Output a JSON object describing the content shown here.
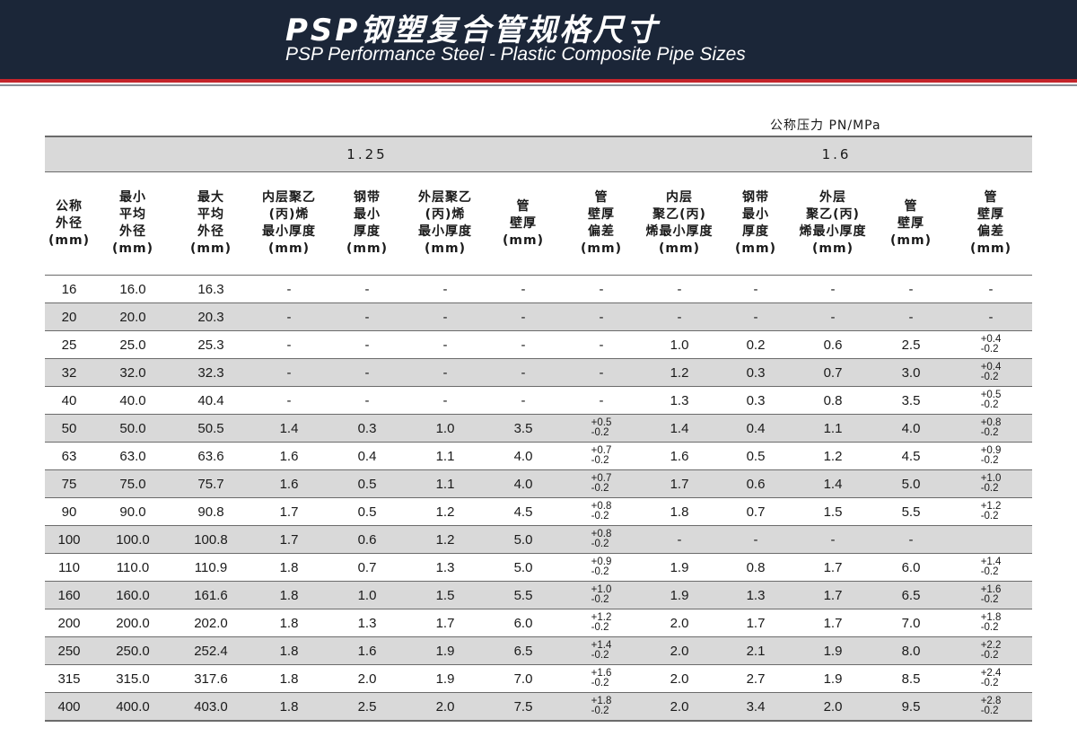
{
  "header": {
    "title_zh": "PSP钢塑复合管规格尺寸",
    "title_en": "PSP Performance Steel - Plastic Composite Pipe Sizes"
  },
  "pressure_label": "公称压力 PN/MPa",
  "groups": [
    {
      "label": ""
    },
    {
      "label": "1.25"
    },
    {
      "label": "1.6"
    }
  ],
  "columns": [
    "公称\n外径\n(mm)",
    "最小\n平均\n外径\n(mm)",
    "最大\n平均\n外径\n(mm)",
    "内层聚乙\n(丙)烯\n最小厚度\n(mm)",
    "钢带\n最小\n厚度\n(mm)",
    "外层聚乙\n(丙)烯\n最小厚度\n(mm)",
    "管\n壁厚\n(mm)",
    "管\n壁厚\n偏差\n(mm)",
    "内层\n聚乙(丙)\n烯最小厚度\n(mm)",
    "钢带\n最小\n厚度\n(mm)",
    "外层\n聚乙(丙)\n烯最小厚度\n(mm)",
    "管\n壁厚\n(mm)",
    "管\n壁厚\n偏差\n(mm)"
  ],
  "rows": [
    [
      "16",
      "16.0",
      "16.3",
      "-",
      "-",
      "-",
      "-",
      "-",
      "-",
      "-",
      "-",
      "-",
      "-"
    ],
    [
      "20",
      "20.0",
      "20.3",
      "-",
      "-",
      "-",
      "-",
      "-",
      "-",
      "-",
      "-",
      "-",
      "-"
    ],
    [
      "25",
      "25.0",
      "25.3",
      "-",
      "-",
      "-",
      "-",
      "-",
      "1.0",
      "0.2",
      "0.6",
      "2.5",
      "+0.4\n-0.2"
    ],
    [
      "32",
      "32.0",
      "32.3",
      "-",
      "-",
      "-",
      "-",
      "-",
      "1.2",
      "0.3",
      "0.7",
      "3.0",
      "+0.4\n-0.2"
    ],
    [
      "40",
      "40.0",
      "40.4",
      "-",
      "-",
      "-",
      "-",
      "-",
      "1.3",
      "0.3",
      "0.8",
      "3.5",
      "+0.5\n-0.2"
    ],
    [
      "50",
      "50.0",
      "50.5",
      "1.4",
      "0.3",
      "1.0",
      "3.5",
      "+0.5\n-0.2",
      "1.4",
      "0.4",
      "1.1",
      "4.0",
      "+0.8\n-0.2"
    ],
    [
      "63",
      "63.0",
      "63.6",
      "1.6",
      "0.4",
      "1.1",
      "4.0",
      "+0.7\n-0.2",
      "1.6",
      "0.5",
      "1.2",
      "4.5",
      "+0.9\n-0.2"
    ],
    [
      "75",
      "75.0",
      "75.7",
      "1.6",
      "0.5",
      "1.1",
      "4.0",
      "+0.7\n-0.2",
      "1.7",
      "0.6",
      "1.4",
      "5.0",
      "+1.0\n-0.2"
    ],
    [
      "90",
      "90.0",
      "90.8",
      "1.7",
      "0.5",
      "1.2",
      "4.5",
      "+0.8\n-0.2",
      "1.8",
      "0.7",
      "1.5",
      "5.5",
      "+1.2\n-0.2"
    ],
    [
      "100",
      "100.0",
      "100.8",
      "1.7",
      "0.6",
      "1.2",
      "5.0",
      "+0.8\n-0.2",
      "-",
      "-",
      "-",
      "-",
      ""
    ],
    [
      "110",
      "110.0",
      "110.9",
      "1.8",
      "0.7",
      "1.3",
      "5.0",
      "+0.9\n-0.2",
      "1.9",
      "0.8",
      "1.7",
      "6.0",
      "+1.4\n-0.2"
    ],
    [
      "160",
      "160.0",
      "161.6",
      "1.8",
      "1.0",
      "1.5",
      "5.5",
      "+1.0\n-0.2",
      "1.9",
      "1.3",
      "1.7",
      "6.5",
      "+1.6\n-0.2"
    ],
    [
      "200",
      "200.0",
      "202.0",
      "1.8",
      "1.3",
      "1.7",
      "6.0",
      "+1.2\n-0.2",
      "2.0",
      "1.7",
      "1.7",
      "7.0",
      "+1.8\n-0.2"
    ],
    [
      "250",
      "250.0",
      "252.4",
      "1.8",
      "1.6",
      "1.9",
      "6.5",
      "+1.4\n-0.2",
      "2.0",
      "2.1",
      "1.9",
      "8.0",
      "+2.2\n-0.2"
    ],
    [
      "315",
      "315.0",
      "317.6",
      "1.8",
      "2.0",
      "1.9",
      "7.0",
      "+1.6\n-0.2",
      "2.0",
      "2.7",
      "1.9",
      "8.5",
      "+2.4\n-0.2"
    ],
    [
      "400",
      "400.0",
      "403.0",
      "1.8",
      "2.5",
      "2.0",
      "7.5",
      "+1.8\n-0.2",
      "2.0",
      "3.4",
      "2.0",
      "9.5",
      "+2.8\n-0.2"
    ]
  ],
  "shaded_rows": [
    1,
    3,
    5,
    7,
    9,
    11,
    13,
    15
  ],
  "colors": {
    "banner": "#1b2638",
    "accent_red": "#c4242b",
    "row_shade": "#d9d9d9"
  }
}
